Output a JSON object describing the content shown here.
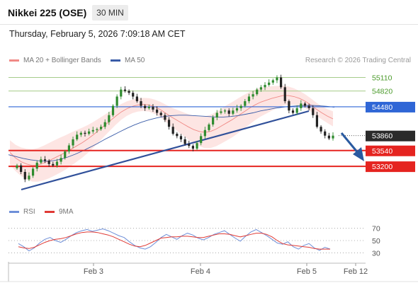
{
  "header": {
    "title": "Nikkei 225 (OSE)",
    "timeframe": "30 MIN"
  },
  "datetime": "Thursday, February 5, 2026 7:09:18 AM CET",
  "credit": "Research © 2026 Trading Central",
  "legend": {
    "bollinger": "MA 20 + Bollinger Bands",
    "ma50": "MA 50",
    "rsi": "RSI",
    "rsi_ma": "9MA"
  },
  "colors": {
    "bollinger": "#f08a86",
    "band_fill": "#fde0de",
    "ma50": "#3a5ca8",
    "resistance": "#a6cc8a",
    "support": "#e52420",
    "pivot": "#2f66d6",
    "price_label": "#2b2b2b",
    "candle_up": "#2e8b2e",
    "candle_down": "#222222",
    "rsi": "#6e8fd8",
    "rsi_ma": "#e03a35"
  },
  "chart_data": [
    {
      "type": "candlestick",
      "x_ticks": [
        "Feb 3",
        "Feb 4",
        "Feb 5",
        "Feb 12"
      ],
      "ylim": [
        52700,
        55300
      ],
      "levels": [
        {
          "value": 55110,
          "label": "55110",
          "kind": "resistance"
        },
        {
          "value": 54820,
          "label": "54820",
          "kind": "resistance"
        },
        {
          "value": 54480,
          "label": "54480",
          "kind": "pivot"
        },
        {
          "value": 53860,
          "label": "53860",
          "kind": "last"
        },
        {
          "value": 53540,
          "label": "53540",
          "kind": "support"
        },
        {
          "value": 53200,
          "label": "53200",
          "kind": "support"
        }
      ],
      "close": [
        53220,
        53080,
        52920,
        53000,
        53150,
        53280,
        53350,
        53320,
        53250,
        53220,
        53300,
        53380,
        53520,
        53650,
        53780,
        53880,
        53920,
        53900,
        53950,
        53980,
        54000,
        54050,
        54150,
        54300,
        54500,
        54700,
        54850,
        54820,
        54780,
        54700,
        54600,
        54500,
        54450,
        54480,
        54420,
        54350,
        54300,
        54200,
        54050,
        53900,
        53850,
        53780,
        53680,
        53640,
        53580,
        53700,
        53850,
        53980,
        54100,
        54250,
        54350,
        54380,
        54400,
        54330,
        54400,
        54450,
        54500,
        54600,
        54700,
        54750,
        54850,
        54900,
        54950,
        55000,
        55050,
        55110,
        54900,
        54600,
        54400,
        54350,
        54450,
        54550,
        54500,
        54450,
        54300,
        54050,
        53950,
        53860,
        53800,
        53860
      ],
      "ma20": [
        53500,
        53380,
        53300,
        53250,
        53220,
        53230,
        53270,
        53320,
        53380,
        53440,
        53500,
        53570,
        53640,
        53710,
        53790,
        53880,
        53980,
        54080,
        54180,
        54280,
        54370,
        54440,
        54490,
        54520,
        54530,
        54520,
        54480,
        54420,
        54340,
        54260,
        54190,
        54120,
        54050,
        53990,
        53950,
        53930,
        53950,
        54000,
        54070,
        54140,
        54210,
        54290,
        54370,
        54450,
        54520,
        54580,
        54620,
        54660,
        54690,
        54720,
        54720,
        54700,
        54660,
        54600,
        54520,
        54430,
        54350,
        54280,
        54220
      ],
      "ma50": [
        53450,
        53410,
        53370,
        53340,
        53320,
        53310,
        53320,
        53350,
        53400,
        53460,
        53530,
        53610,
        53690,
        53780,
        53860,
        53940,
        54020,
        54090,
        54150,
        54200,
        54240,
        54270,
        54290,
        54300,
        54300,
        54290,
        54280,
        54270,
        54260,
        54260,
        54270,
        54290,
        54320,
        54350,
        54390,
        54420,
        54450,
        54470,
        54490,
        54500,
        54510,
        54510,
        54500,
        54490,
        54470
      ]
    },
    {
      "type": "line",
      "name": "RSI",
      "ylim": [
        20,
        80
      ],
      "y_ticks": [
        70,
        50,
        30
      ],
      "rsi": [
        45,
        40,
        33,
        38,
        46,
        52,
        55,
        50,
        47,
        52,
        58,
        63,
        66,
        68,
        65,
        67,
        69,
        66,
        62,
        58,
        55,
        48,
        42,
        38,
        36,
        40,
        47,
        55,
        60,
        56,
        52,
        58,
        62,
        59,
        54,
        51,
        55,
        60,
        63,
        66,
        60,
        54,
        49,
        57,
        64,
        68,
        63,
        58,
        52,
        46,
        44,
        48,
        40,
        36,
        42,
        45,
        38,
        34,
        39,
        36
      ],
      "rsi_ma": [
        40,
        38,
        37,
        39,
        43,
        47,
        50,
        52,
        53,
        55,
        58,
        61,
        63,
        64,
        64,
        63,
        61,
        59,
        56,
        52,
        48,
        44,
        41,
        40,
        42,
        46,
        50,
        54,
        55,
        56,
        56,
        57,
        57,
        56,
        55,
        55,
        57,
        59,
        61,
        61,
        60,
        58,
        56,
        58,
        60,
        62,
        62,
        60,
        56,
        50,
        45,
        43,
        42,
        41,
        40,
        39,
        37,
        36,
        36,
        36
      ]
    }
  ]
}
